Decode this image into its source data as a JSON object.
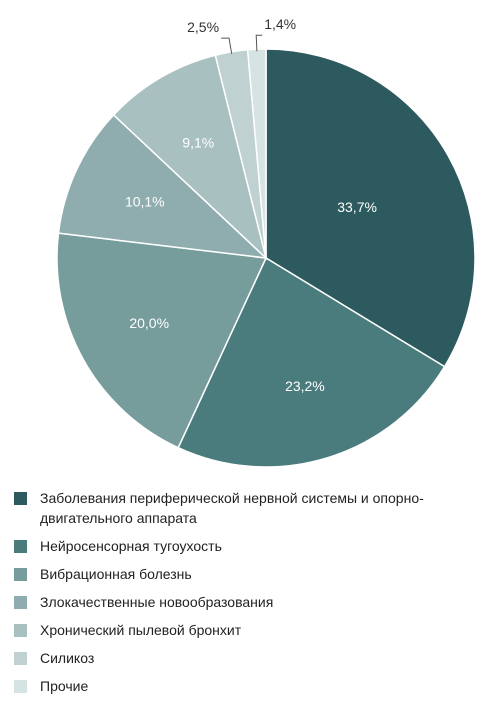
{
  "chart_data": {
    "type": "pie",
    "slices": [
      {
        "label": "Заболевания периферической нервной системы и опорно-двигательного аппарата",
        "value": 33.7,
        "display": "33,7%",
        "color": "#2c5a5e"
      },
      {
        "label": "Нейросенсорная тугоухость",
        "value": 23.2,
        "display": "23,2%",
        "color": "#4a7c7e"
      },
      {
        "label": "Вибрационная болезнь",
        "value": 20.0,
        "display": "20,0%",
        "color": "#769c9c"
      },
      {
        "label": "Злокачественные новообразования",
        "value": 10.1,
        "display": "10,1%",
        "color": "#8fadae"
      },
      {
        "label": "Хронический пылевой бронхит",
        "value": 9.1,
        "display": "9,1%",
        "color": "#a8c0c0"
      },
      {
        "label": "Силикоз",
        "value": 2.5,
        "display": "2,5%",
        "color": "#bfd1d1"
      },
      {
        "label": "Прочие",
        "value": 1.4,
        "display": "1,4%",
        "color": "#d6e3e3"
      }
    ],
    "start": "12 o'clock",
    "direction": "clockwise",
    "legend_position": "bottom"
  }
}
